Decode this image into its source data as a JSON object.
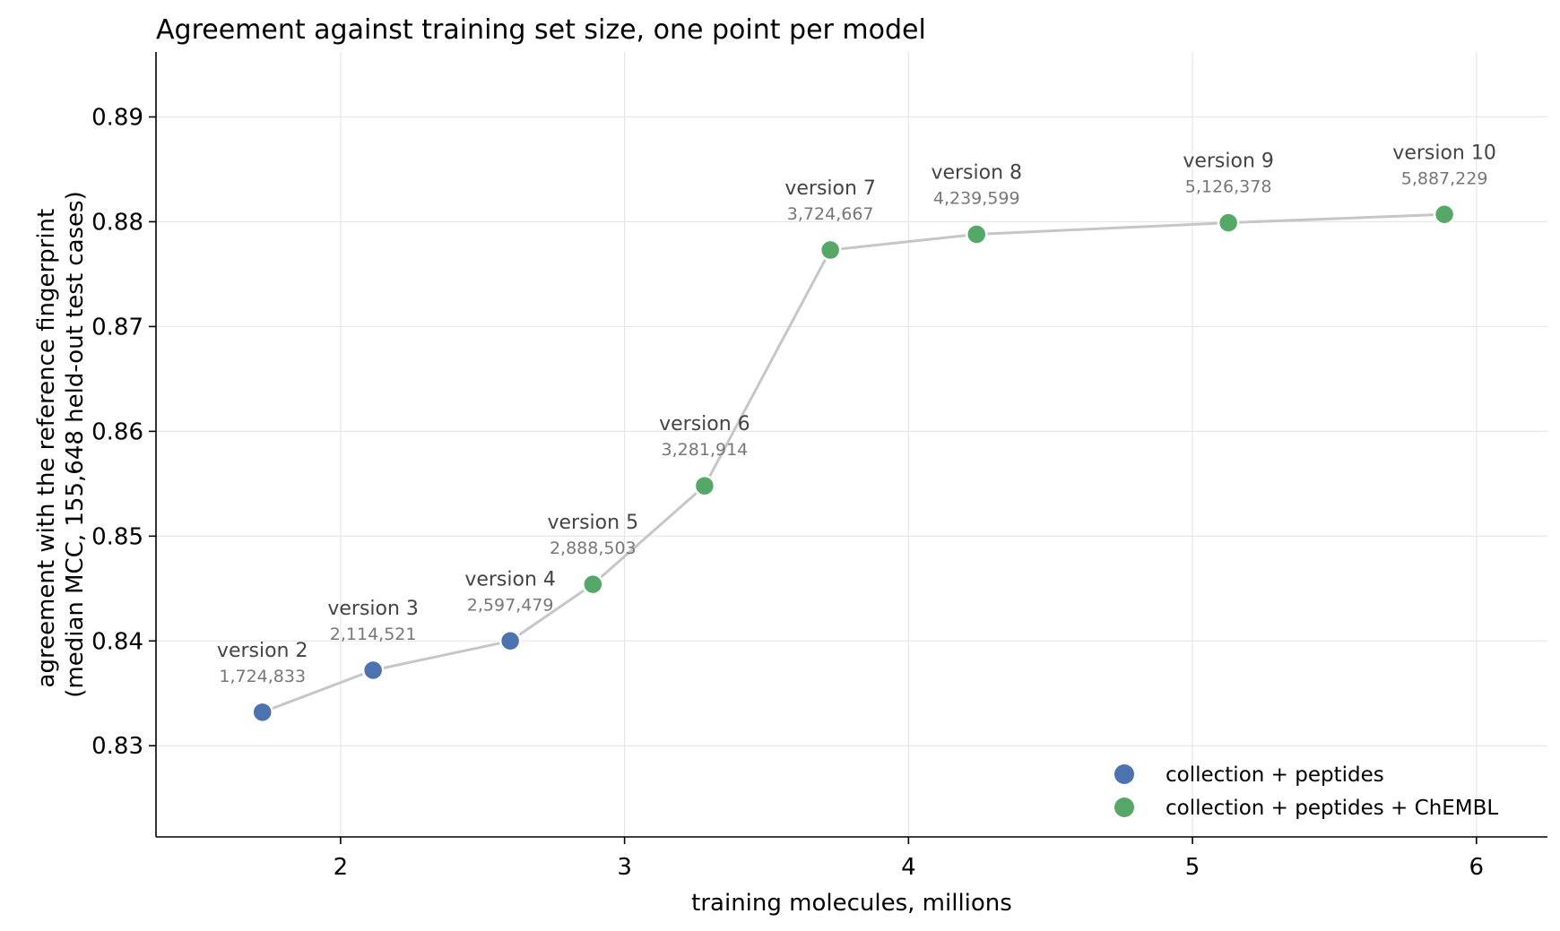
{
  "chart_data": {
    "type": "scatter",
    "title": "Agreement against training set size, one point per model",
    "xlabel": "training molecules, millions",
    "ylabel": [
      "agreement with the reference fingerprint",
      "(median MCC, 155,648 held-out test cases)"
    ],
    "xlim": [
      1.35,
      6.25
    ],
    "ylim": [
      0.8213,
      0.8962
    ],
    "xticks": [
      2,
      3,
      4,
      5,
      6
    ],
    "yticks": [
      0.83,
      0.84,
      0.85,
      0.86,
      0.87,
      0.88,
      0.89
    ],
    "xtick_labels": [
      "2",
      "3",
      "4",
      "5",
      "6"
    ],
    "ytick_labels": [
      "0.83",
      "0.84",
      "0.85",
      "0.86",
      "0.87",
      "0.88",
      "0.89"
    ],
    "grid": true,
    "legend_position": "bottom-right",
    "series": [
      {
        "name": "collection + peptides",
        "color": "#4c72b0"
      },
      {
        "name": "collection + peptides + ChEMBL",
        "color": "#55a868"
      }
    ],
    "points": [
      {
        "label": "version 2",
        "count": "1,724,833",
        "x": 1.7248,
        "y": 0.8332,
        "series": 0
      },
      {
        "label": "version 3",
        "count": "2,114,521",
        "x": 2.1145,
        "y": 0.8372,
        "series": 0
      },
      {
        "label": "version 4",
        "count": "2,597,479",
        "x": 2.5975,
        "y": 0.84,
        "series": 0
      },
      {
        "label": "version 5",
        "count": "2,888,503",
        "x": 2.8885,
        "y": 0.8454,
        "series": 1
      },
      {
        "label": "version 6",
        "count": "3,281,914",
        "x": 3.2819,
        "y": 0.8548,
        "series": 1
      },
      {
        "label": "version 7",
        "count": "3,724,667",
        "x": 3.7247,
        "y": 0.8773,
        "series": 1
      },
      {
        "label": "version 8",
        "count": "4,239,599",
        "x": 4.2396,
        "y": 0.8788,
        "series": 1
      },
      {
        "label": "version 9",
        "count": "5,126,378",
        "x": 5.1264,
        "y": 0.8799,
        "series": 1
      },
      {
        "label": "version 10",
        "count": "5,887,229",
        "x": 5.8872,
        "y": 0.8807,
        "series": 1
      }
    ]
  }
}
